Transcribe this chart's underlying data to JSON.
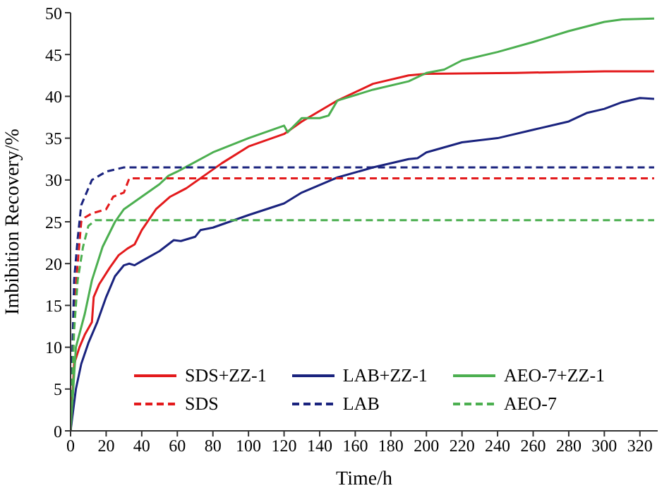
{
  "chart_data": {
    "type": "line",
    "xlabel": "Time/h",
    "ylabel": "Imbibition Recovery/%",
    "xlim": [
      0,
      330
    ],
    "xticks": [
      0,
      20,
      40,
      60,
      80,
      100,
      120,
      140,
      160,
      180,
      200,
      220,
      240,
      260,
      280,
      300,
      320
    ],
    "ylim": [
      0,
      50
    ],
    "yticks": [
      0,
      5,
      10,
      15,
      20,
      25,
      30,
      35,
      40,
      45,
      50
    ],
    "grid": false,
    "legend": "bottom",
    "marker": "none",
    "series": [
      {
        "name": "SDS+ZZ-1",
        "color": "#e31a1c",
        "line_style": "solid",
        "x": [
          0,
          2,
          5,
          8,
          12,
          13,
          16,
          22,
          27,
          32,
          36,
          40,
          48,
          56,
          65,
          75,
          85,
          100,
          120,
          130,
          150,
          170,
          190,
          200,
          250,
          300,
          328
        ],
        "values": [
          0,
          8,
          10,
          11.5,
          13,
          16,
          17.5,
          19.5,
          21,
          21.8,
          22.3,
          24,
          26.5,
          28,
          29,
          30.5,
          32,
          34,
          35.5,
          37,
          39.5,
          41.5,
          42.5,
          42.7,
          42.8,
          43,
          43
        ]
      },
      {
        "name": "LAB+ZZ-1",
        "color": "#1a237e",
        "line_style": "solid",
        "x": [
          0,
          3,
          6,
          10,
          15,
          20,
          25,
          30,
          33,
          36,
          40,
          50,
          58,
          62,
          70,
          73,
          80,
          100,
          120,
          130,
          150,
          170,
          190,
          195,
          200,
          220,
          240,
          260,
          280,
          290,
          300,
          310,
          320,
          328
        ],
        "values": [
          0,
          5,
          8,
          10.5,
          13,
          16,
          18.5,
          19.8,
          20,
          19.8,
          20.3,
          21.5,
          22.8,
          22.7,
          23.2,
          24,
          24.3,
          25.8,
          27.2,
          28.5,
          30.3,
          31.5,
          32.5,
          32.6,
          33.3,
          34.5,
          35,
          36,
          37,
          38,
          38.5,
          39.3,
          39.8,
          39.7
        ]
      },
      {
        "name": "AEO-7+ZZ-1",
        "color": "#4caf50",
        "line_style": "solid",
        "x": [
          0,
          3,
          8,
          12,
          18,
          25,
          30,
          40,
          50,
          55,
          60,
          80,
          100,
          120,
          122,
          130,
          140,
          145,
          150,
          170,
          190,
          200,
          210,
          220,
          240,
          260,
          280,
          300,
          310,
          328
        ],
        "values": [
          0,
          10,
          14,
          18,
          22,
          25,
          26.5,
          28,
          29.5,
          30.5,
          31,
          33.3,
          35,
          36.5,
          35.7,
          37.4,
          37.4,
          37.7,
          39.5,
          40.8,
          41.8,
          42.8,
          43.2,
          44.3,
          45.3,
          46.5,
          47.8,
          48.9,
          49.2,
          49.3
        ]
      },
      {
        "name": "SDS",
        "color": "#e31a1c",
        "line_style": "dashed",
        "x": [
          0,
          2,
          4,
          6,
          8,
          12,
          20,
          24,
          30,
          33,
          328
        ],
        "values": [
          0,
          15,
          20,
          25,
          25.5,
          26,
          26.5,
          28,
          28.5,
          30.2,
          30.2
        ]
      },
      {
        "name": "LAB",
        "color": "#1a237e",
        "line_style": "dashed",
        "x": [
          0,
          2,
          4,
          6,
          12,
          20,
          30,
          328
        ],
        "values": [
          0,
          18,
          23,
          27,
          30,
          31,
          31.5,
          31.5
        ]
      },
      {
        "name": "AEO-7",
        "color": "#4caf50",
        "line_style": "dashed",
        "x": [
          0,
          2,
          4,
          7,
          10,
          14,
          328
        ],
        "values": [
          0,
          12,
          18,
          22,
          24.5,
          25.2,
          25.2
        ]
      }
    ]
  }
}
